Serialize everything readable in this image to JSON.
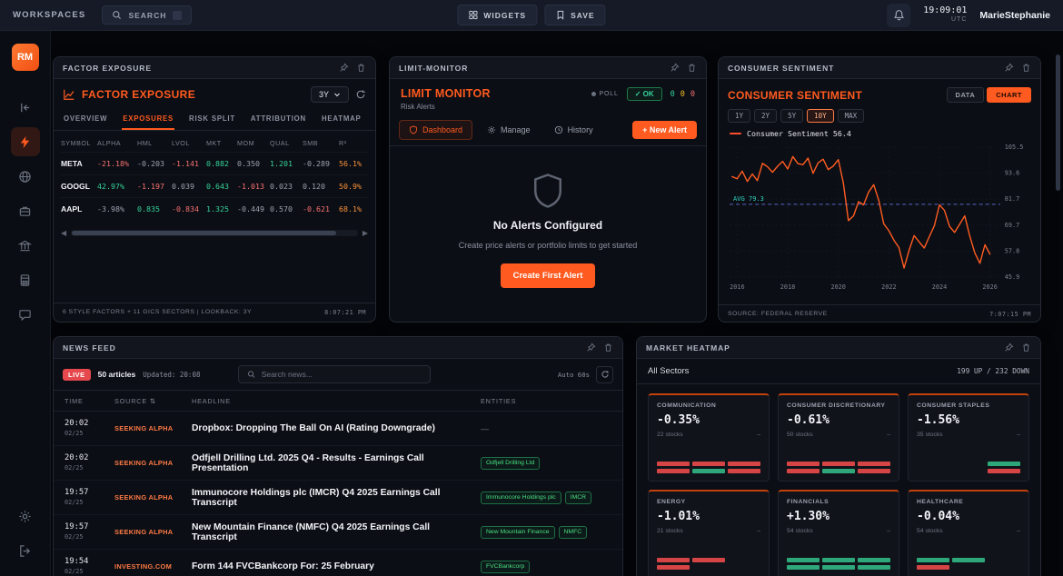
{
  "theme": {
    "accent": "#ff5a1f",
    "green": "#34d399",
    "red": "#f87171",
    "amber": "#fbbf24",
    "chip_green": "#4ade80"
  },
  "topbar": {
    "workspaces": "WORKSPACES",
    "search": "SEARCH",
    "widgets": "WIDGETS",
    "save": "SAVE",
    "time": "19:09:01",
    "timezone": "UTC",
    "user": "MarieStephanie"
  },
  "sidebar": {
    "avatar": "RM"
  },
  "panels": {
    "factor_exposure": {
      "panel_title": "FACTOR EXPOSURE",
      "title": "FACTOR EXPOSURE",
      "lookback": "3Y",
      "tabs": [
        "OVERVIEW",
        "EXPOSURES",
        "RISK SPLIT",
        "ATTRIBUTION",
        "HEATMAP"
      ],
      "active_tab": "EXPOSURES",
      "columns": [
        "SYMBOL",
        "ALPHA",
        "HML",
        "LVOL",
        "MKT",
        "MOM",
        "QUAL",
        "SMB",
        "R²"
      ],
      "rows": [
        {
          "symbol": "META",
          "cells": [
            {
              "v": "-21.18%",
              "c": "red"
            },
            {
              "v": "-0.203",
              "c": "dim"
            },
            {
              "v": "-1.141",
              "c": "red"
            },
            {
              "v": "0.882",
              "c": "green"
            },
            {
              "v": "0.350",
              "c": "dim"
            },
            {
              "v": "1.201",
              "c": "green"
            },
            {
              "v": "-0.289",
              "c": "dim"
            },
            {
              "v": "56.1%",
              "c": "orange"
            }
          ]
        },
        {
          "symbol": "GOOGL",
          "cells": [
            {
              "v": "42.97%",
              "c": "green"
            },
            {
              "v": "-1.197",
              "c": "red"
            },
            {
              "v": "0.039",
              "c": "dim"
            },
            {
              "v": "0.643",
              "c": "green"
            },
            {
              "v": "-1.013",
              "c": "red"
            },
            {
              "v": "0.023",
              "c": "dim"
            },
            {
              "v": "0.120",
              "c": "dim"
            },
            {
              "v": "50.9%",
              "c": "orange"
            }
          ]
        },
        {
          "symbol": "AAPL",
          "cells": [
            {
              "v": "-3.98%",
              "c": "dim"
            },
            {
              "v": "0.835",
              "c": "green"
            },
            {
              "v": "-0.834",
              "c": "red"
            },
            {
              "v": "1.325",
              "c": "green"
            },
            {
              "v": "-0.449",
              "c": "dim"
            },
            {
              "v": "0.570",
              "c": "dim"
            },
            {
              "v": "-0.621",
              "c": "red"
            },
            {
              "v": "68.1%",
              "c": "orange"
            }
          ]
        }
      ],
      "footer_left": "6 STYLE FACTORS + 11 GICS SECTORS | LOOKBACK: 3Y",
      "footer_right": "8:07:21 PM"
    },
    "limit_monitor": {
      "panel_title": "LIMIT-MONITOR",
      "title": "LIMIT MONITOR",
      "subtitle": "Risk Alerts",
      "poll_label": "POLL",
      "ok_label": "✓ OK",
      "counts": [
        "0",
        "0",
        "0"
      ],
      "tabs": [
        {
          "label": "Dashboard",
          "icon": "shield-icon"
        },
        {
          "label": "Manage",
          "icon": "gear-icon"
        },
        {
          "label": "History",
          "icon": "clock-icon"
        }
      ],
      "active_tab": "Dashboard",
      "new_alert_label": "+ New Alert",
      "empty_title": "No Alerts Configured",
      "empty_text": "Create price alerts or portfolio limits to get started",
      "cta_label": "Create First Alert"
    },
    "consumer_sentiment": {
      "panel_title": "CONSUMER SENTIMENT",
      "title": "CONSUMER SENTIMENT",
      "toggle": {
        "data": "DATA",
        "chart": "CHART"
      },
      "active_toggle": "CHART",
      "ranges": [
        "1Y",
        "2Y",
        "5Y",
        "10Y",
        "MAX"
      ],
      "active_range": "10Y",
      "legend": "Consumer Sentiment 56.4",
      "avg_label": "AVG 79.3",
      "source": "SOURCE: FEDERAL RESERVE",
      "timestamp": "7:07:15 PM"
    },
    "news_feed": {
      "panel_title": "NEWS FEED",
      "live": "LIVE",
      "articles": "50 articles",
      "updated": "Updated: 20:08",
      "search_placeholder": "Search news...",
      "auto": "Auto 60s",
      "columns": [
        "TIME",
        "SOURCE",
        "HEADLINE",
        "ENTITIES"
      ],
      "empty_marker": "—",
      "rows": [
        {
          "time": "20:02",
          "date": "02/25",
          "source": "SEEKING ALPHA",
          "headline": "Dropbox: Dropping The Ball On AI (Rating Downgrade)",
          "entities": []
        },
        {
          "time": "20:02",
          "date": "02/25",
          "source": "SEEKING ALPHA",
          "headline": "Odfjell Drilling Ltd. 2025 Q4 - Results - Earnings Call Presentation",
          "entities": [
            "Odfjell Drilling Ltd"
          ]
        },
        {
          "time": "19:57",
          "date": "02/25",
          "source": "SEEKING ALPHA",
          "headline": "Immunocore Holdings plc (IMCR) Q4 2025 Earnings Call Transcript",
          "entities": [
            "Immunocore Holdings plc",
            "IMCR"
          ]
        },
        {
          "time": "19:57",
          "date": "02/25",
          "source": "SEEKING ALPHA",
          "headline": "New Mountain Finance (NMFC) Q4 2025 Earnings Call Transcript",
          "entities": [
            "New Mountain Finance",
            "NMFC"
          ]
        },
        {
          "time": "19:54",
          "date": "02/25",
          "source": "INVESTING.COM",
          "headline": "Form 144 FVCBankcorp For: 25 February",
          "entities": [
            "FVCBankcorp"
          ]
        }
      ]
    },
    "market_heatmap": {
      "panel_title": "MARKET HEATMAP",
      "filter_label": "All Sectors",
      "breadth": "199 UP / 232 DOWN",
      "sectors": [
        {
          "name": "COMMUNICATION",
          "change": "-0.35%",
          "stocks": "22 stocks",
          "bars": [
            [
              "d",
              "d",
              "d"
            ],
            [
              "d",
              "u",
              "d"
            ]
          ]
        },
        {
          "name": "CONSUMER DISCRETIONARY",
          "change": "-0.61%",
          "stocks": "50 stocks",
          "bars": [
            [
              "d",
              "d",
              "d"
            ],
            [
              "d",
              "u",
              "d"
            ]
          ]
        },
        {
          "name": "CONSUMER STAPLES",
          "change": "-1.56%",
          "stocks": "35 stocks",
          "bars": [
            [
              "n",
              "n",
              "u"
            ],
            [
              "n",
              "n",
              "d"
            ]
          ]
        },
        {
          "name": "ENERGY",
          "change": "-1.01%",
          "stocks": "21 stocks",
          "bars": [
            [
              "d",
              "d",
              "n"
            ],
            [
              "d",
              "n",
              "n"
            ]
          ]
        },
        {
          "name": "FINANCIALS",
          "change": "+1.30%",
          "stocks": "54 stocks",
          "bars": [
            [
              "u",
              "u",
              "u"
            ],
            [
              "u",
              "u",
              "u"
            ]
          ]
        },
        {
          "name": "HEALTHCARE",
          "change": "-0.04%",
          "stocks": "54 stocks",
          "bars": [
            [
              "u",
              "u",
              "n"
            ],
            [
              "d",
              "n",
              "n"
            ]
          ]
        }
      ]
    }
  },
  "chart_data": {
    "type": "line",
    "title": "Consumer Sentiment",
    "legend_entries": [
      "Consumer Sentiment 56.4"
    ],
    "legend_position": "top-left",
    "grid": true,
    "xlabel": "",
    "ylabel": "",
    "xlim": [
      2015.7,
      2026.4
    ],
    "ylim": [
      45.9,
      105.5
    ],
    "yticks": [
      105.5,
      93.6,
      81.7,
      69.7,
      57.8,
      45.9
    ],
    "xticks": [
      2016,
      2018,
      2020,
      2022,
      2024,
      2026
    ],
    "average": 79.3,
    "last_value": 56.4,
    "line_color": "#ff5c22",
    "avg_line_color": "#6675e0",
    "avg_label_color": "#2dd4bf",
    "series": [
      {
        "name": "Consumer Sentiment",
        "x": [
          2015.8,
          2016.0,
          2016.2,
          2016.4,
          2016.6,
          2016.8,
          2017.0,
          2017.2,
          2017.4,
          2017.6,
          2017.8,
          2018.0,
          2018.2,
          2018.4,
          2018.6,
          2018.8,
          2019.0,
          2019.2,
          2019.4,
          2019.6,
          2019.8,
          2020.0,
          2020.2,
          2020.4,
          2020.6,
          2020.8,
          2021.0,
          2021.2,
          2021.4,
          2021.6,
          2021.8,
          2022.0,
          2022.2,
          2022.4,
          2022.6,
          2022.8,
          2023.0,
          2023.2,
          2023.4,
          2023.6,
          2023.8,
          2024.0,
          2024.2,
          2024.4,
          2024.6,
          2024.8,
          2025.0,
          2025.2,
          2025.4,
          2025.6,
          2025.8,
          2026.0
        ],
        "y": [
          92.0,
          91.0,
          94.5,
          89.8,
          93.2,
          90.2,
          98.1,
          96.5,
          94.0,
          96.8,
          99.0,
          95.5,
          101.2,
          98.0,
          97.5,
          100.5,
          93.5,
          98.3,
          100.0,
          95.2,
          96.8,
          99.8,
          89.0,
          71.8,
          74.0,
          80.5,
          79.0,
          84.9,
          88.3,
          81.2,
          70.3,
          67.2,
          62.8,
          59.4,
          50.0,
          58.2,
          64.9,
          62.0,
          59.2,
          64.4,
          69.5,
          79.0,
          76.5,
          69.1,
          66.4,
          70.1,
          74.0,
          64.7,
          57.0,
          52.2,
          60.7,
          56.4
        ]
      }
    ]
  }
}
